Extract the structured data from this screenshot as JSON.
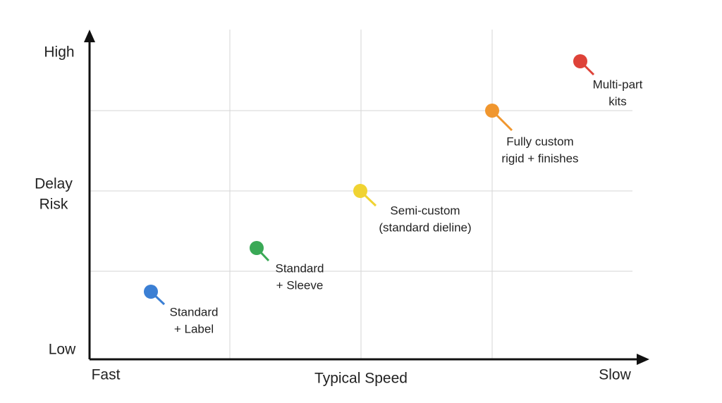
{
  "axes": {
    "y_high": "High",
    "y_title": [
      "Delay",
      "Risk"
    ],
    "y_low": "Low",
    "x_fast": "Fast",
    "x_title": "Typical Speed",
    "x_slow": "Slow"
  },
  "points": [
    {
      "label": [
        "Standard",
        "+ Label"
      ]
    },
    {
      "label": [
        "Standard",
        "+ Sleeve"
      ]
    },
    {
      "label": [
        "Semi-custom",
        "(standard dieline)"
      ]
    },
    {
      "label": [
        "Fully custom",
        "rigid + finishes"
      ]
    },
    {
      "label": [
        "Multi-part",
        "kits"
      ]
    }
  ]
}
